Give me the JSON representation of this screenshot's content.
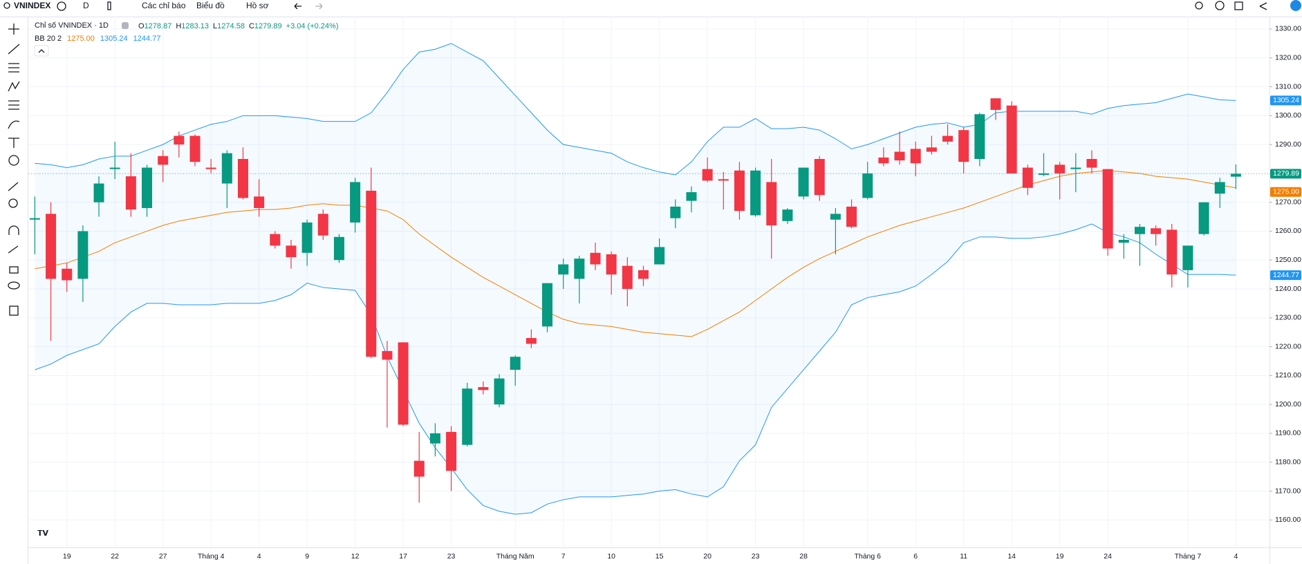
{
  "toolbar": {
    "symbol": "VNINDEX",
    "interval": "D",
    "indicators": "Các chỉ báo",
    "chart": "Biểu đồ",
    "profile": "Hồ sơ"
  },
  "chart_data": {
    "type": "candlestick",
    "title": "Chỉ số VNINDEX · 1D",
    "ohlc_prefixes": [
      "O",
      "H",
      "L",
      "C"
    ],
    "change": "+3.04 (+0.24%)",
    "indicator": "BB 20 2",
    "up_color": "#089981",
    "down_color": "#f23645",
    "categories": [
      null,
      null,
      "19",
      null,
      null,
      "22",
      null,
      null,
      "27",
      null,
      null,
      "Tháng 4",
      null,
      null,
      "4",
      null,
      null,
      "9",
      null,
      null,
      "12",
      null,
      null,
      "17",
      null,
      null,
      "23",
      null,
      null,
      null,
      "Tháng Năm",
      null,
      null,
      "7",
      null,
      null,
      "10",
      null,
      null,
      "15",
      null,
      null,
      "20",
      null,
      null,
      "23",
      null,
      null,
      "28",
      null,
      null,
      null,
      "Tháng 6",
      null,
      null,
      "6",
      null,
      null,
      "11",
      null,
      null,
      "14",
      null,
      null,
      "19",
      null,
      null,
      "24",
      null,
      null,
      null,
      null,
      "Tháng 7",
      null,
      null,
      "4"
    ],
    "open": [
      1264,
      1266,
      1247,
      1243.5,
      1270,
      1281.5,
      1279,
      1268,
      1286,
      1293,
      1293,
      1282,
      1276.5,
      1285,
      1272,
      1259,
      1255,
      1252.5,
      1266,
      1250,
      1263,
      1274,
      1218.5,
      1221.5,
      1180.5,
      1186.5,
      1190.5,
      1186,
      1206,
      1200,
      1212,
      1223,
      1227,
      1245,
      1243.5,
      1252.5,
      1252,
      1248,
      1246.5,
      1248.5,
      1264.5,
      1270.5,
      1281.5,
      1278,
      1281,
      1265.5,
      1277,
      1263.5,
      1272,
      1285,
      1264,
      1268.5,
      1271.5,
      1285.5,
      1287.5,
      1288.5,
      1289,
      1293,
      1295,
      1285,
      1306,
      1303.5,
      1282,
      1279.5,
      1283,
      1281.5,
      1285,
      1281.5,
      1256,
      1259,
      1261,
      1260.5,
      1246.5,
      1259,
      1273,
      1278.87
    ],
    "high": [
      1272,
      1270,
      1249,
      1262,
      1279,
      1291,
      1287,
      1283,
      1288,
      1294.5,
      1293.5,
      1285,
      1288,
      1289,
      1278,
      1260,
      1257,
      1264,
      1267.5,
      1259,
      1278.5,
      1282,
      1222,
      1221.5,
      1190.5,
      1193.5,
      1192.5,
      1207.5,
      1208,
      1210.5,
      1217,
      1226,
      1242,
      1250.5,
      1251.5,
      1256,
      1253,
      1251,
      1248,
      1257.5,
      1271,
      1275.5,
      1285.5,
      1280.5,
      1284,
      1282,
      1285,
      1268,
      1282,
      1286,
      1268,
      1271,
      1284,
      1289,
      1294.5,
      1291,
      1293,
      1297,
      1296,
      1301,
      1306,
      1305,
      1283,
      1287,
      1284,
      1287,
      1288,
      1281.5,
      1259,
      1262.5,
      1262,
      1262.5,
      1255,
      1270,
      1278.5,
      1283.13
    ],
    "low": [
      1252,
      1222,
      1239,
      1235.5,
      1265,
      1278,
      1265,
      1265,
      1277,
      1285.5,
      1282.5,
      1280,
      1268,
      1271,
      1265,
      1254,
      1247,
      1248,
      1257,
      1249,
      1259.5,
      1216,
      1192,
      1192.5,
      1166,
      1182,
      1170,
      1185.5,
      1203.5,
      1199,
      1206.5,
      1219.5,
      1225,
      1240,
      1235,
      1246.5,
      1238,
      1234,
      1241,
      1248.5,
      1261,
      1266.5,
      1277,
      1267.5,
      1264,
      1265,
      1250.5,
      1262.5,
      1271,
      1270.5,
      1252,
      1261,
      1271,
      1282.5,
      1283,
      1279,
      1286.5,
      1290,
      1280,
      1282.5,
      1298.5,
      1280,
      1272.5,
      1279,
      1271,
      1273.5,
      1280,
      1251.5,
      1250.5,
      1248,
      1255,
      1240.5,
      1240.5,
      1258.5,
      1268,
      1274.58
    ],
    "close": [
      1264.5,
      1243.5,
      1243,
      1260,
      1276.5,
      1282,
      1267.5,
      1282,
      1283,
      1290,
      1284,
      1281.5,
      1287,
      1271.5,
      1268,
      1255,
      1251,
      1263,
      1258.5,
      1258,
      1277,
      1216.5,
      1215.5,
      1193,
      1175,
      1190,
      1177,
      1205.5,
      1205,
      1209,
      1216.5,
      1221,
      1242,
      1248.5,
      1250.5,
      1248.5,
      1245,
      1240,
      1243.5,
      1254.5,
      1268.5,
      1273.5,
      1277.5,
      1277.5,
      1267,
      1281,
      1262,
      1267.5,
      1282,
      1272.5,
      1266,
      1261.5,
      1280,
      1283.5,
      1284.5,
      1283.5,
      1287.5,
      1291,
      1284,
      1300.5,
      1302,
      1280,
      1275,
      1280,
      1280,
      1282,
      1282,
      1254,
      1257,
      1261.5,
      1259,
      1245,
      1255,
      1270,
      1277,
      1279.89
    ],
    "series": [
      {
        "color": "#f57c00",
        "value_label": "1275.00",
        "values": [
          1247,
          1248,
          1249,
          1251,
          1253,
          1256,
          1258,
          1260,
          1262,
          1263.5,
          1264.5,
          1265.5,
          1266.5,
          1267,
          1267.5,
          1267.5,
          1268,
          1269,
          1269.5,
          1269,
          1269,
          1268,
          1267,
          1264,
          1259,
          1255,
          1251,
          1247.5,
          1244,
          1241,
          1238,
          1235,
          1232,
          1229.5,
          1228,
          1227.5,
          1227,
          1226,
          1225,
          1224.5,
          1224,
          1223.5,
          1226,
          1229,
          1232,
          1236,
          1240,
          1244,
          1247.5,
          1250.5,
          1253,
          1255.5,
          1258,
          1260,
          1262,
          1263.5,
          1265,
          1266.5,
          1268,
          1270,
          1272,
          1274,
          1276,
          1277.5,
          1279,
          1280,
          1280.5,
          1281,
          1280.5,
          1280,
          1279,
          1278.5,
          1278,
          1277,
          1276,
          1275
        ]
      },
      {
        "color": "#2196f3",
        "values": [
          1283.5,
          1283,
          1282,
          1283,
          1285,
          1286,
          1286,
          1288,
          1290,
          1293,
          1295,
          1297,
          1298,
          1300,
          1300,
          1300,
          1299.5,
          1299,
          1298,
          1298,
          1298,
          1301,
          1308,
          1316,
          1322,
          1323,
          1325,
          1322,
          1319,
          1313,
          1307,
          1301,
          1295,
          1290,
          1289,
          1288,
          1287,
          1284,
          1282,
          1280.5,
          1279.5,
          1284,
          1291,
          1296,
          1296,
          1299,
          1295.5,
          1295.5,
          1296,
          1295,
          1292,
          1288.5,
          1290,
          1292,
          1294,
          1296,
          1297,
          1297.5,
          1296,
          1297,
          1301,
          1301.5,
          1301.5,
          1301.5,
          1301.5,
          1301.5,
          1300.5,
          1302.5,
          1303.5,
          1304,
          1304.5,
          1306,
          1307.5,
          1306.5,
          1305.5,
          1305.24
        ]
      },
      {
        "color": "#2196f3",
        "values": [
          1212,
          1214,
          1217,
          1219,
          1221,
          1227,
          1232,
          1235,
          1235,
          1234.5,
          1234.5,
          1234.5,
          1235,
          1235,
          1235,
          1236,
          1238,
          1242,
          1240.5,
          1240,
          1239.5,
          1231,
          1216.5,
          1205,
          1193.5,
          1185,
          1178,
          1170.5,
          1165,
          1163,
          1162,
          1162.5,
          1165.5,
          1167,
          1168,
          1168,
          1168,
          1168.5,
          1169,
          1170,
          1170.5,
          1169,
          1168,
          1171.5,
          1180.5,
          1186,
          1199,
          1205.5,
          1212,
          1218.5,
          1225,
          1234.5,
          1237,
          1238,
          1239,
          1241,
          1245,
          1249.5,
          1256,
          1258,
          1258,
          1257.5,
          1257.5,
          1258,
          1259,
          1260.5,
          1262.5,
          1259.5,
          1258,
          1256,
          1252,
          1248.5,
          1245,
          1245,
          1245,
          1244.77
        ]
      }
    ],
    "ylim": [
      1150.5,
      1334.3
    ],
    "yticks": [
      {
        "value": 1160,
        "label": "1160.00"
      },
      {
        "value": 1170,
        "label": "1170.00"
      },
      {
        "value": 1180,
        "label": "1180.00"
      },
      {
        "value": 1190,
        "label": "1190.00"
      },
      {
        "value": 1200,
        "label": "1200.00"
      },
      {
        "value": 1210,
        "label": "1210.00"
      },
      {
        "value": 1220,
        "label": "1220.00"
      },
      {
        "value": 1230,
        "label": "1230.00"
      },
      {
        "value": 1240,
        "label": "1240.00"
      },
      {
        "value": 1250,
        "label": "1250.00"
      },
      {
        "value": 1260,
        "label": "1260.00"
      },
      {
        "value": 1270,
        "label": "1270.00"
      },
      {
        "value": 1280,
        "label": "1280.00"
      },
      {
        "value": 1290,
        "label": "1290.00"
      },
      {
        "value": 1300,
        "label": "1300.00"
      },
      {
        "value": 1310,
        "label": "1310.00"
      },
      {
        "value": 1320,
        "label": "1320.00"
      },
      {
        "value": 1330,
        "label": "1330.00"
      }
    ],
    "grid": true
  }
}
